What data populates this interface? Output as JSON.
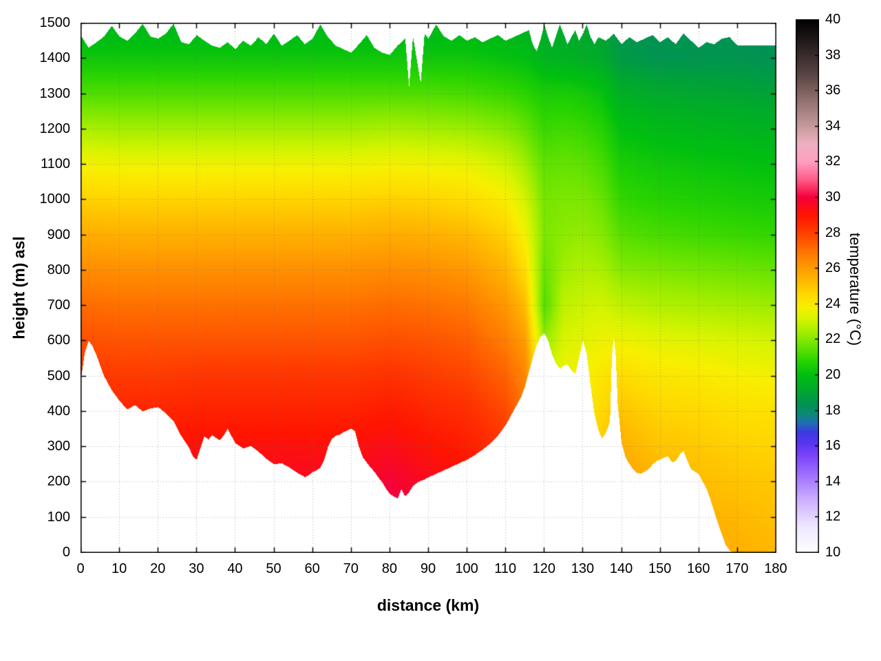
{
  "chart_data": {
    "type": "heatmap",
    "title": "",
    "xlabel": "distance (km)",
    "ylabel": "height (m) asl",
    "colorbar_label": "temperature (°C)",
    "xlim": [
      0,
      180
    ],
    "ylim": [
      0,
      1500
    ],
    "clim": [
      10,
      40
    ],
    "xticks": [
      0,
      10,
      20,
      30,
      40,
      50,
      60,
      70,
      80,
      90,
      100,
      110,
      120,
      130,
      140,
      150,
      160,
      170,
      180
    ],
    "yticks": [
      0,
      100,
      200,
      300,
      400,
      500,
      600,
      700,
      800,
      900,
      1000,
      1100,
      1200,
      1300,
      1400,
      1500
    ],
    "cticks": [
      10,
      12,
      14,
      16,
      18,
      20,
      22,
      24,
      26,
      28,
      30,
      32,
      34,
      36,
      38,
      40
    ],
    "grid": "dotted",
    "colormap_stops": [
      [
        10,
        "#ffffff"
      ],
      [
        11.5,
        "#eee6ff"
      ],
      [
        13,
        "#cdaeff"
      ],
      [
        14.5,
        "#9b6bff"
      ],
      [
        15.5,
        "#7a42fa"
      ],
      [
        16.2,
        "#5535f0"
      ],
      [
        16.8,
        "#3b3be0"
      ],
      [
        17.3,
        "#1f6fb0"
      ],
      [
        17.8,
        "#0c8a78"
      ],
      [
        18.3,
        "#009255"
      ],
      [
        19,
        "#00a532"
      ],
      [
        20,
        "#00bf10"
      ],
      [
        20.8,
        "#2ad400"
      ],
      [
        21.6,
        "#66e300"
      ],
      [
        22.4,
        "#a4ee00"
      ],
      [
        23.2,
        "#d9f400"
      ],
      [
        23.8,
        "#f8ef00"
      ],
      [
        24.5,
        "#ffd900"
      ],
      [
        25.2,
        "#ffbc00"
      ],
      [
        26,
        "#ff9c00"
      ],
      [
        26.8,
        "#ff7a00"
      ],
      [
        27.5,
        "#ff5800"
      ],
      [
        28.2,
        "#ff3500"
      ],
      [
        29,
        "#ff1500"
      ],
      [
        30,
        "#f5003c"
      ],
      [
        31,
        "#ff5c8a"
      ],
      [
        32,
        "#ff9fc0"
      ],
      [
        33,
        "#eeb0c0"
      ],
      [
        34,
        "#c79a9c"
      ],
      [
        35.5,
        "#8f6f6e"
      ],
      [
        37,
        "#574241"
      ],
      [
        38.5,
        "#2b2020"
      ],
      [
        40,
        "#000000"
      ]
    ],
    "terrain_profile": [
      [
        0,
        490
      ],
      [
        1,
        565
      ],
      [
        2,
        600
      ],
      [
        3,
        585
      ],
      [
        4,
        560
      ],
      [
        5,
        530
      ],
      [
        6,
        500
      ],
      [
        7,
        480
      ],
      [
        8,
        460
      ],
      [
        10,
        430
      ],
      [
        12,
        405
      ],
      [
        14,
        418
      ],
      [
        16,
        400
      ],
      [
        18,
        408
      ],
      [
        20,
        412
      ],
      [
        22,
        395
      ],
      [
        24,
        372
      ],
      [
        26,
        330
      ],
      [
        28,
        298
      ],
      [
        29,
        272
      ],
      [
        30,
        263
      ],
      [
        31,
        298
      ],
      [
        32,
        330
      ],
      [
        33,
        320
      ],
      [
        34,
        332
      ],
      [
        35,
        325
      ],
      [
        36,
        318
      ],
      [
        37,
        332
      ],
      [
        38,
        350
      ],
      [
        39,
        330
      ],
      [
        40,
        310
      ],
      [
        42,
        295
      ],
      [
        44,
        302
      ],
      [
        46,
        286
      ],
      [
        48,
        266
      ],
      [
        50,
        250
      ],
      [
        52,
        253
      ],
      [
        54,
        241
      ],
      [
        56,
        226
      ],
      [
        58,
        214
      ],
      [
        59,
        219
      ],
      [
        60,
        228
      ],
      [
        61,
        233
      ],
      [
        62,
        240
      ],
      [
        63,
        262
      ],
      [
        64,
        300
      ],
      [
        65,
        322
      ],
      [
        66,
        331
      ],
      [
        67,
        334
      ],
      [
        68,
        341
      ],
      [
        69,
        346
      ],
      [
        70,
        351
      ],
      [
        71,
        344
      ],
      [
        72,
        300
      ],
      [
        73,
        270
      ],
      [
        74,
        255
      ],
      [
        75,
        241
      ],
      [
        76,
        229
      ],
      [
        77,
        213
      ],
      [
        78,
        200
      ],
      [
        79,
        181
      ],
      [
        80,
        166
      ],
      [
        81,
        159
      ],
      [
        82,
        153
      ],
      [
        83,
        179
      ],
      [
        84,
        159
      ],
      [
        85,
        171
      ],
      [
        86,
        189
      ],
      [
        87,
        197
      ],
      [
        88,
        203
      ],
      [
        89,
        207
      ],
      [
        90,
        213
      ],
      [
        92,
        223
      ],
      [
        94,
        233
      ],
      [
        96,
        243
      ],
      [
        98,
        253
      ],
      [
        100,
        263
      ],
      [
        102,
        276
      ],
      [
        104,
        291
      ],
      [
        106,
        309
      ],
      [
        108,
        331
      ],
      [
        110,
        361
      ],
      [
        112,
        401
      ],
      [
        114,
        441
      ],
      [
        115,
        471
      ],
      [
        116,
        511
      ],
      [
        117,
        551
      ],
      [
        118,
        586
      ],
      [
        119,
        611
      ],
      [
        120,
        622
      ],
      [
        121,
        601
      ],
      [
        122,
        561
      ],
      [
        123,
        536
      ],
      [
        124,
        521
      ],
      [
        125,
        529
      ],
      [
        126,
        533
      ],
      [
        127,
        516
      ],
      [
        128,
        506
      ],
      [
        129,
        551
      ],
      [
        130,
        601
      ],
      [
        131,
        561
      ],
      [
        132,
        471
      ],
      [
        133,
        391
      ],
      [
        134,
        346
      ],
      [
        135,
        323
      ],
      [
        136,
        341
      ],
      [
        137,
        371
      ],
      [
        137.5,
        556
      ],
      [
        138,
        611
      ],
      [
        138.5,
        556
      ],
      [
        139,
        421
      ],
      [
        140,
        311
      ],
      [
        141,
        271
      ],
      [
        142,
        251
      ],
      [
        143,
        236
      ],
      [
        144,
        226
      ],
      [
        145,
        223
      ],
      [
        146,
        229
      ],
      [
        147,
        236
      ],
      [
        148,
        249
      ],
      [
        149,
        259
      ],
      [
        150,
        263
      ],
      [
        151,
        269
      ],
      [
        152,
        273
      ],
      [
        153,
        256
      ],
      [
        154,
        259
      ],
      [
        155,
        276
      ],
      [
        156,
        289
      ],
      [
        157,
        261
      ],
      [
        158,
        236
      ],
      [
        159,
        229
      ],
      [
        160,
        223
      ],
      [
        161,
        201
      ],
      [
        162,
        181
      ],
      [
        163,
        151
      ],
      [
        164,
        116
      ],
      [
        165,
        81
      ],
      [
        166,
        51
      ],
      [
        167,
        21
      ],
      [
        168,
        6
      ],
      [
        169,
        0
      ],
      [
        180,
        0
      ]
    ],
    "top_boundary": [
      [
        0,
        1465
      ],
      [
        2,
        1430
      ],
      [
        4,
        1445
      ],
      [
        6,
        1462
      ],
      [
        8,
        1492
      ],
      [
        10,
        1462
      ],
      [
        12,
        1450
      ],
      [
        14,
        1470
      ],
      [
        16,
        1498
      ],
      [
        18,
        1462
      ],
      [
        20,
        1456
      ],
      [
        22,
        1470
      ],
      [
        24,
        1498
      ],
      [
        26,
        1446
      ],
      [
        28,
        1440
      ],
      [
        30,
        1466
      ],
      [
        32,
        1450
      ],
      [
        34,
        1436
      ],
      [
        36,
        1430
      ],
      [
        38,
        1446
      ],
      [
        40,
        1426
      ],
      [
        42,
        1450
      ],
      [
        44,
        1436
      ],
      [
        46,
        1460
      ],
      [
        48,
        1440
      ],
      [
        50,
        1470
      ],
      [
        52,
        1436
      ],
      [
        54,
        1450
      ],
      [
        56,
        1466
      ],
      [
        58,
        1440
      ],
      [
        60,
        1456
      ],
      [
        62,
        1496
      ],
      [
        64,
        1460
      ],
      [
        66,
        1436
      ],
      [
        68,
        1426
      ],
      [
        70,
        1416
      ],
      [
        72,
        1440
      ],
      [
        74,
        1466
      ],
      [
        76,
        1430
      ],
      [
        78,
        1416
      ],
      [
        80,
        1410
      ],
      [
        82,
        1436
      ],
      [
        84,
        1456
      ],
      [
        85,
        1320
      ],
      [
        86,
        1462
      ],
      [
        88,
        1330
      ],
      [
        89,
        1470
      ],
      [
        90,
        1456
      ],
      [
        92,
        1496
      ],
      [
        94,
        1462
      ],
      [
        96,
        1450
      ],
      [
        98,
        1466
      ],
      [
        100,
        1450
      ],
      [
        102,
        1460
      ],
      [
        104,
        1446
      ],
      [
        106,
        1456
      ],
      [
        108,
        1466
      ],
      [
        110,
        1450
      ],
      [
        112,
        1460
      ],
      [
        114,
        1470
      ],
      [
        116,
        1480
      ],
      [
        117,
        1440
      ],
      [
        118,
        1420
      ],
      [
        119,
        1452
      ],
      [
        120,
        1496
      ],
      [
        121,
        1460
      ],
      [
        122,
        1430
      ],
      [
        123,
        1462
      ],
      [
        124,
        1496
      ],
      [
        125,
        1470
      ],
      [
        126,
        1440
      ],
      [
        127,
        1460
      ],
      [
        128,
        1480
      ],
      [
        129,
        1450
      ],
      [
        130,
        1470
      ],
      [
        131,
        1496
      ],
      [
        132,
        1460
      ],
      [
        133,
        1440
      ],
      [
        134,
        1460
      ],
      [
        136,
        1450
      ],
      [
        138,
        1470
      ],
      [
        140,
        1440
      ],
      [
        142,
        1460
      ],
      [
        144,
        1446
      ],
      [
        146,
        1456
      ],
      [
        148,
        1466
      ],
      [
        150,
        1446
      ],
      [
        152,
        1460
      ],
      [
        154,
        1440
      ],
      [
        156,
        1470
      ],
      [
        158,
        1450
      ],
      [
        160,
        1430
      ],
      [
        162,
        1446
      ],
      [
        164,
        1440
      ],
      [
        166,
        1456
      ],
      [
        168,
        1460
      ],
      [
        170,
        1436
      ],
      [
        173,
        1436
      ],
      [
        176,
        1436
      ],
      [
        180,
        1436
      ]
    ],
    "temperature_grid": {
      "x": [
        0,
        10,
        20,
        30,
        40,
        50,
        60,
        70,
        80,
        90,
        100,
        110,
        115,
        120,
        125,
        130,
        135,
        140,
        150,
        160,
        170,
        180
      ],
      "z": [
        0,
        100,
        200,
        300,
        400,
        500,
        600,
        700,
        800,
        900,
        1000,
        1100,
        1200,
        1300,
        1400,
        1500
      ],
      "values": [
        [
          30.0,
          30.0,
          30.0,
          30.0,
          30.0,
          30.0,
          30.1,
          30.2,
          30.6,
          30.2,
          29.8,
          29.0,
          28.0,
          26.0,
          25.5,
          25.0,
          25.5,
          26.5,
          26.0,
          25.8,
          25.5,
          25.3
        ],
        [
          29.8,
          29.8,
          29.8,
          29.8,
          29.8,
          29.8,
          29.9,
          30.0,
          30.3,
          29.9,
          29.5,
          28.8,
          27.8,
          25.6,
          25.2,
          24.8,
          25.3,
          26.2,
          25.7,
          25.5,
          25.3,
          25.1
        ],
        [
          29.4,
          29.4,
          29.4,
          29.5,
          29.5,
          29.5,
          29.6,
          29.6,
          29.9,
          29.5,
          29.2,
          28.5,
          27.5,
          25.1,
          24.9,
          24.6,
          25.1,
          25.9,
          25.4,
          25.2,
          25.0,
          24.9
        ],
        [
          29.0,
          29.0,
          29.0,
          29.2,
          29.2,
          29.2,
          29.2,
          29.2,
          29.4,
          29.1,
          28.8,
          28.2,
          27.2,
          24.6,
          24.5,
          24.3,
          24.9,
          25.5,
          25.0,
          24.9,
          24.7,
          24.6
        ],
        [
          28.6,
          28.6,
          28.6,
          28.7,
          28.7,
          28.7,
          28.7,
          28.7,
          28.9,
          28.6,
          28.4,
          27.8,
          26.9,
          24.1,
          24.1,
          24.0,
          24.5,
          25.0,
          24.6,
          24.5,
          24.3,
          24.2
        ],
        [
          28.2,
          28.1,
          28.1,
          28.2,
          28.2,
          28.2,
          28.2,
          28.2,
          28.3,
          28.1,
          27.9,
          27.3,
          26.5,
          23.2,
          23.6,
          23.7,
          24.1,
          24.4,
          24.1,
          24.0,
          23.8,
          23.7
        ],
        [
          27.7,
          27.6,
          27.6,
          27.6,
          27.6,
          27.6,
          27.6,
          27.6,
          27.7,
          27.6,
          27.4,
          26.7,
          26.0,
          22.2,
          23.2,
          23.4,
          23.6,
          23.6,
          23.4,
          23.3,
          23.2,
          23.1
        ],
        [
          27.1,
          27.0,
          27.0,
          27.0,
          27.0,
          27.0,
          27.0,
          27.0,
          27.1,
          27.0,
          26.8,
          26.1,
          25.2,
          21.3,
          22.8,
          23.0,
          23.1,
          22.8,
          22.6,
          22.5,
          22.4,
          22.3
        ],
        [
          26.4,
          26.3,
          26.3,
          26.3,
          26.3,
          26.3,
          26.3,
          26.3,
          26.4,
          26.3,
          26.1,
          25.4,
          24.4,
          21.6,
          22.4,
          22.6,
          22.5,
          22.0,
          21.9,
          21.8,
          21.7,
          21.6
        ],
        [
          25.6,
          25.5,
          25.5,
          25.5,
          25.5,
          25.5,
          25.5,
          25.5,
          25.6,
          25.5,
          25.3,
          24.7,
          23.7,
          21.9,
          22.1,
          22.2,
          22.0,
          21.4,
          21.2,
          21.1,
          21.0,
          20.9
        ],
        [
          24.7,
          24.6,
          24.6,
          24.6,
          24.6,
          24.6,
          24.6,
          24.6,
          24.7,
          24.6,
          24.4,
          23.9,
          23.1,
          21.8,
          21.9,
          21.9,
          21.6,
          20.9,
          20.7,
          20.6,
          20.5,
          20.4
        ],
        [
          23.7,
          23.6,
          23.6,
          23.6,
          23.6,
          23.6,
          23.6,
          23.6,
          23.7,
          23.6,
          23.5,
          23.0,
          22.4,
          21.5,
          21.6,
          21.5,
          21.2,
          20.5,
          20.3,
          20.2,
          20.1,
          20.0
        ],
        [
          22.5,
          22.4,
          22.4,
          22.4,
          22.4,
          22.4,
          22.4,
          22.4,
          22.5,
          22.4,
          22.3,
          22.0,
          21.6,
          21.0,
          21.1,
          21.0,
          20.7,
          20.0,
          19.8,
          19.7,
          19.6,
          19.5
        ],
        [
          21.3,
          21.3,
          21.3,
          21.3,
          21.3,
          21.3,
          21.3,
          21.3,
          21.3,
          21.3,
          21.2,
          21.0,
          20.8,
          20.5,
          20.5,
          20.4,
          20.1,
          19.4,
          19.2,
          19.1,
          19.0,
          18.9
        ],
        [
          20.3,
          20.3,
          20.3,
          20.3,
          20.3,
          20.3,
          20.3,
          20.3,
          20.3,
          20.3,
          20.3,
          20.1,
          20.0,
          19.6,
          19.5,
          19.4,
          19.2,
          18.6,
          18.4,
          18.4,
          18.4,
          18.3
        ],
        [
          19.6,
          19.6,
          19.6,
          19.6,
          19.6,
          19.6,
          19.6,
          19.6,
          19.6,
          19.6,
          19.6,
          19.5,
          19.4,
          19.2,
          19.1,
          19.0,
          18.8,
          18.4,
          18.3,
          18.3,
          18.3,
          18.2
        ]
      ]
    }
  }
}
